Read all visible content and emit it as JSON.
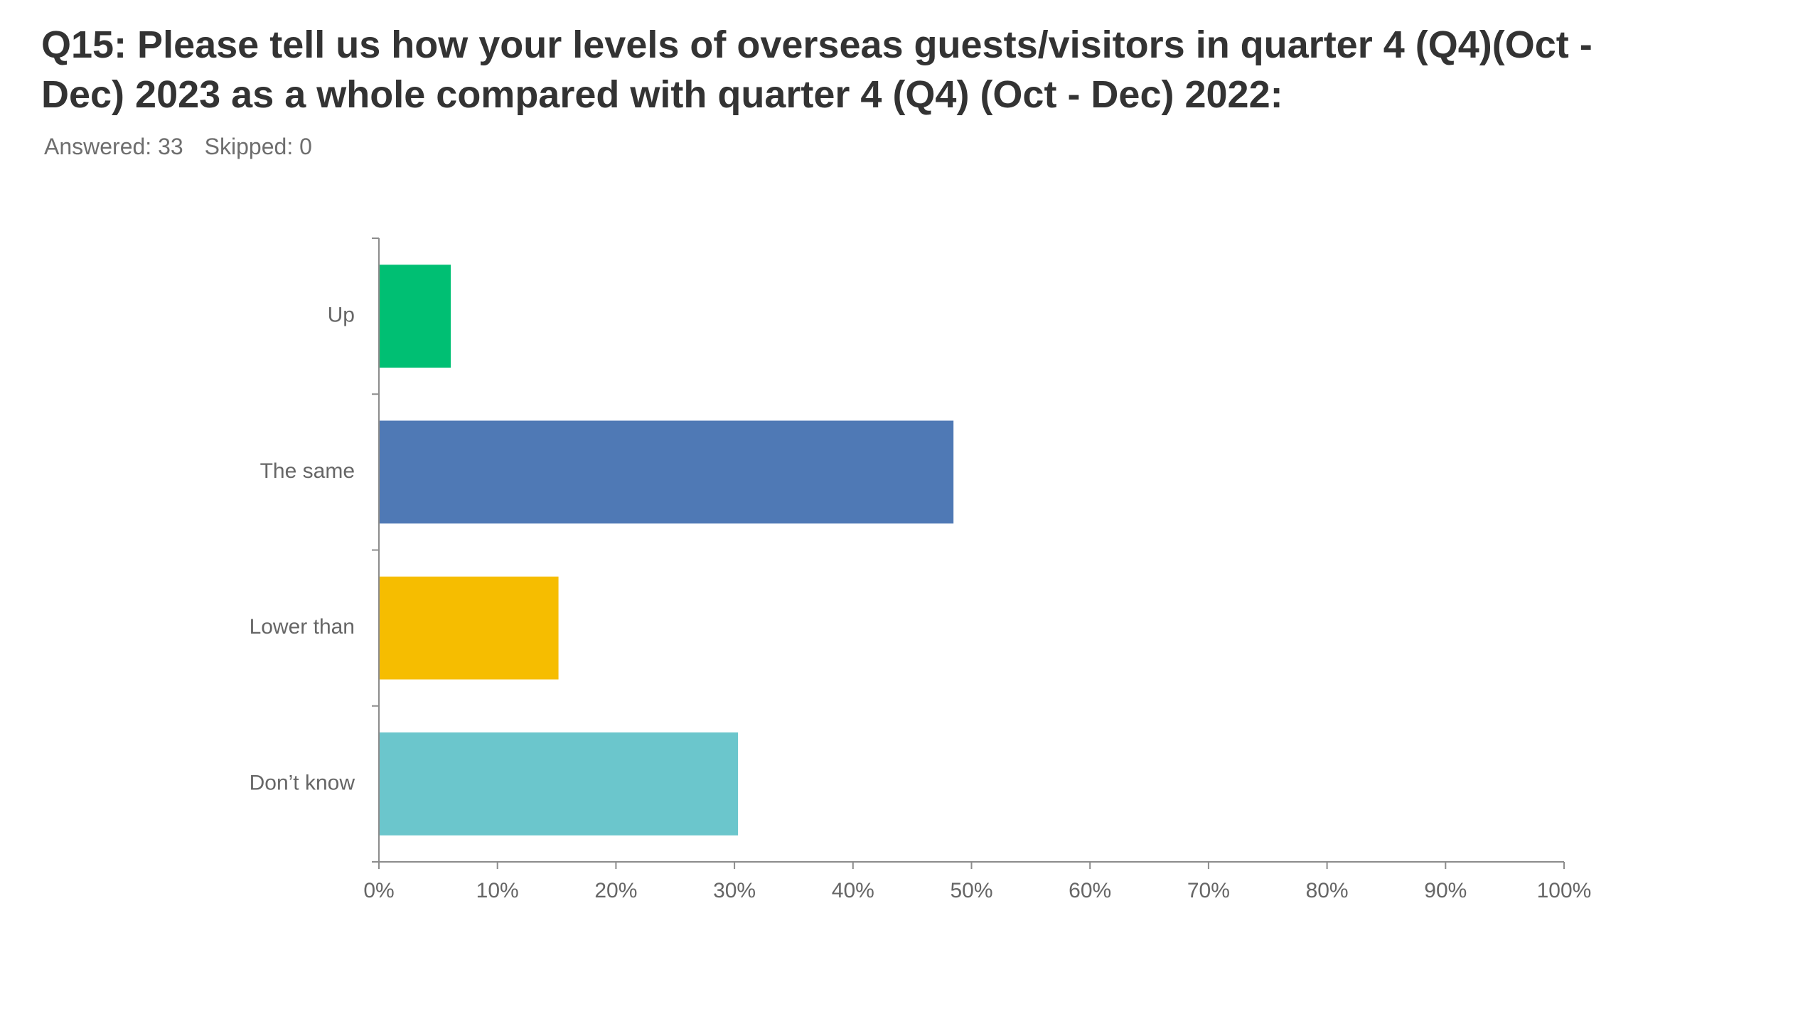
{
  "header": {
    "title": "Q15: Please tell us how your levels of overseas guests/visitors in quarter 4 (Q4)(Oct - Dec) 2023 as a whole compared with quarter 4 (Q4) (Oct - Dec) 2022:",
    "answered": "Answered: 33",
    "skipped": "Skipped: 0"
  },
  "chart_data": {
    "type": "bar",
    "orientation": "horizontal",
    "categories": [
      "Up",
      "The same",
      "Lower than",
      "Don’t know"
    ],
    "values": [
      6.06,
      48.48,
      15.15,
      30.3
    ],
    "colors": [
      "#00bf73",
      "#4f79b5",
      "#f6bd00",
      "#6bc6cc"
    ],
    "xlim": [
      0,
      100
    ],
    "xticks": [
      "0%",
      "10%",
      "20%",
      "30%",
      "40%",
      "50%",
      "60%",
      "70%",
      "80%",
      "90%",
      "100%"
    ],
    "grid": false
  }
}
